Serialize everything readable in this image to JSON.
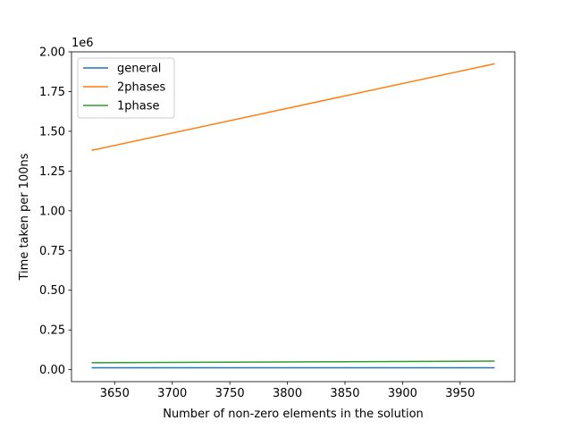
{
  "chart_data": {
    "type": "line",
    "xlabel": "Number of non-zero elements in the solution",
    "ylabel": "Time taken per 100ns",
    "y_offset_label": "1e6",
    "xlim": [
      3612.5,
      3997.5
    ],
    "ylim": [
      -0.075,
      2.0
    ],
    "xticks": [
      3650,
      3700,
      3750,
      3800,
      3850,
      3900,
      3950
    ],
    "xtick_labels": [
      "3650",
      "3700",
      "3750",
      "3800",
      "3850",
      "3900",
      "3950"
    ],
    "yticks": [
      0.0,
      0.25,
      0.5,
      0.75,
      1.0,
      1.25,
      1.5,
      1.75,
      2.0
    ],
    "ytick_labels": [
      "0.00",
      "0.25",
      "0.50",
      "0.75",
      "1.00",
      "1.25",
      "1.50",
      "1.75",
      "2.00"
    ],
    "grid": false,
    "legend_position": "top-left",
    "series": [
      {
        "name": "general",
        "color": "#1f77b4",
        "x": [
          3630,
          3980
        ],
        "y": [
          0.012,
          0.012
        ]
      },
      {
        "name": "2phases",
        "color": "#ff7f0e",
        "x": [
          3630,
          3980
        ],
        "y": [
          1.38,
          1.925
        ]
      },
      {
        "name": "1phase",
        "color": "#2ca02c",
        "x": [
          3630,
          3980
        ],
        "y": [
          0.044,
          0.054
        ]
      }
    ]
  }
}
